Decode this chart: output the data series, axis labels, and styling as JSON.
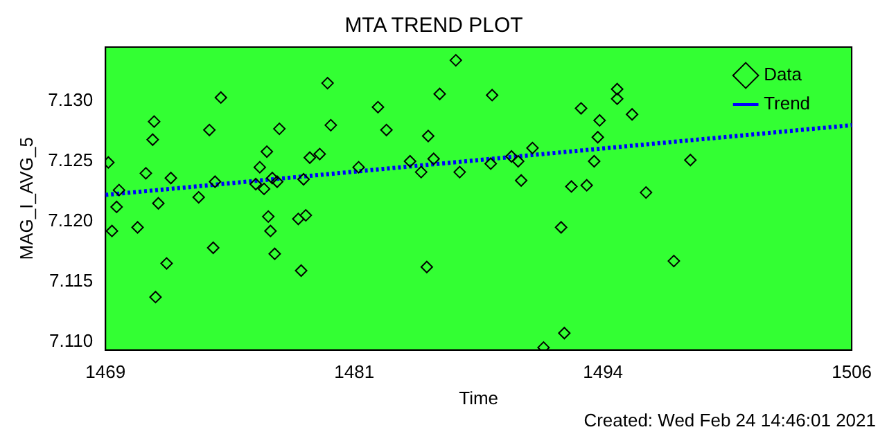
{
  "chart_data": {
    "type": "scatter",
    "title": "MTA TREND PLOT",
    "xlabel": "Time",
    "ylabel": "MAG_I_AVG_5",
    "xlim": [
      1469,
      1506
    ],
    "xticks": [
      1469,
      {
        "value": 1481.333,
        "label": "1481"
      },
      {
        "value": 1493.667,
        "label": "1494"
      },
      1506
    ],
    "ylim": [
      7.1093,
      7.1345
    ],
    "yticks": [
      {
        "value": 7.11,
        "label": "7.110"
      },
      {
        "value": 7.115,
        "label": "7.115"
      },
      {
        "value": 7.12,
        "label": "7.120"
      },
      {
        "value": 7.125,
        "label": "7.125"
      },
      {
        "value": 7.13,
        "label": "7.130"
      }
    ],
    "grid": false,
    "legend": "top right",
    "annotations": [
      "Created: Wed Feb 24 14:46:01 2021"
    ],
    "series": [
      {
        "name": "Data",
        "marker": "diamond",
        "color": "#000000",
        "x": [
          1469.14,
          1469.67,
          1469.55,
          1469.32,
          1470.59,
          1471.0,
          1471.34,
          1471.41,
          1471.62,
          1471.48,
          1472.03,
          1472.24,
          1473.62,
          1474.15,
          1474.34,
          1474.43,
          1474.72,
          1476.45,
          1476.65,
          1476.86,
          1477.0,
          1477.07,
          1477.18,
          1477.27,
          1477.39,
          1477.51,
          1477.62,
          1478.56,
          1478.7,
          1478.82,
          1478.93,
          1479.13,
          1479.62,
          1480.01,
          1480.17,
          1481.55,
          1482.51,
          1482.93,
          1484.1,
          1484.65,
          1485.0,
          1484.93,
          1485.27,
          1485.57,
          1486.37,
          1486.56,
          1488.1,
          1488.17,
          1489.13,
          1489.46,
          1489.61,
          1490.17,
          1490.72,
          1491.59,
          1491.75,
          1492.1,
          1492.58,
          1492.86,
          1493.23,
          1493.41,
          1493.5,
          1494.37,
          1494.37,
          1495.11,
          1498.0,
          1495.8,
          1497.18
        ],
        "values": [
          7.1249,
          7.1226,
          7.1212,
          7.1192,
          7.1195,
          7.124,
          7.1268,
          7.1283,
          7.1215,
          7.1137,
          7.1165,
          7.1236,
          7.122,
          7.1276,
          7.1178,
          7.1233,
          7.1303,
          7.1231,
          7.1245,
          7.1227,
          7.1258,
          7.1204,
          7.1192,
          7.1236,
          7.1173,
          7.1233,
          7.1277,
          7.1202,
          7.1159,
          7.1235,
          7.1205,
          7.1253,
          7.1256,
          7.1315,
          7.128,
          7.1245,
          7.1295,
          7.1276,
          7.125,
          7.1241,
          7.1271,
          7.1162,
          7.1252,
          7.1306,
          7.1334,
          7.1241,
          7.1248,
          7.1305,
          7.1254,
          7.125,
          7.1234,
          7.1261,
          7.1095,
          7.1195,
          7.1107,
          7.1229,
          7.1294,
          7.123,
          7.125,
          7.127,
          7.1284,
          7.131,
          7.1302,
          7.1289,
          7.1251,
          7.1224,
          7.1167
        ]
      },
      {
        "name": "Trend",
        "type": "line",
        "line_style": "dotted",
        "color": "#0000ff",
        "x": [
          1469,
          1506
        ],
        "values": [
          7.1222,
          7.128
        ]
      }
    ]
  }
}
